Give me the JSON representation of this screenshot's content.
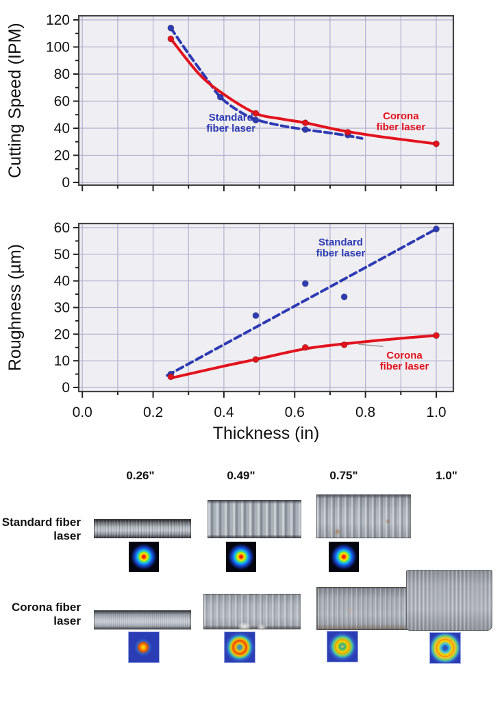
{
  "colors": {
    "standard_series": "#2e3bb3",
    "corona_series": "#e2131d",
    "plot_background": "#efeef2",
    "grid_line": "#b3b0d0",
    "axis_frame": "#444444",
    "text": "#111111"
  },
  "chart_data": [
    {
      "id": "cutting-speed",
      "type": "line",
      "title": "",
      "xlabel": "",
      "ylabel": "Cutting Speed  (IPM)",
      "xlim": [
        0,
        1.0
      ],
      "ylim": [
        0,
        120
      ],
      "xticks": [
        0,
        0.2,
        0.4,
        0.6,
        0.8,
        1.0
      ],
      "xtick_labels": [],
      "x_minor_step": 0.1,
      "yticks": [
        0,
        20,
        40,
        60,
        80,
        100,
        120
      ],
      "ytick_labels": [
        "0",
        "20",
        "40",
        "60",
        "80",
        "100",
        "120"
      ],
      "y_minor_step": 10,
      "grid": true,
      "legend_position": "inline-labels",
      "series": [
        {
          "name": "Standard fiber laser",
          "color": "#2e3bb3",
          "line_style": "dashed",
          "points": [
            [
              0.25,
              114
            ],
            [
              0.39,
              63
            ],
            [
              0.49,
              46
            ],
            [
              0.63,
              39
            ],
            [
              0.75,
              35
            ]
          ],
          "trend_line": [
            [
              0.25,
              114
            ],
            [
              0.3,
              95
            ],
            [
              0.35,
              77
            ],
            [
              0.39,
              63
            ],
            [
              0.44,
              53
            ],
            [
              0.49,
              46.5
            ],
            [
              0.56,
              42
            ],
            [
              0.63,
              39
            ],
            [
              0.7,
              36.5
            ],
            [
              0.75,
              34.5
            ],
            [
              0.79,
              32.5
            ]
          ],
          "label_lines": [
            "Standard",
            "fiber laser"
          ],
          "label_pos": [
            0.42,
            44
          ]
        },
        {
          "name": "Corona fiber laser",
          "color": "#e2131d",
          "line_style": "solid",
          "points": [
            [
              0.25,
              106
            ],
            [
              0.49,
              51
            ],
            [
              0.63,
              44
            ],
            [
              0.75,
              37
            ],
            [
              1.0,
              28.5
            ]
          ],
          "trend_line": [
            [
              0.25,
              106
            ],
            [
              0.33,
              80
            ],
            [
              0.4,
              65
            ],
            [
              0.49,
              51
            ],
            [
              0.56,
              47
            ],
            [
              0.63,
              44
            ],
            [
              0.7,
              40
            ],
            [
              0.75,
              37.5
            ],
            [
              0.85,
              33.5
            ],
            [
              1.0,
              28.5
            ]
          ],
          "label_lines": [
            "Corona",
            "fiber laser"
          ],
          "label_pos": [
            0.9,
            45
          ]
        }
      ]
    },
    {
      "id": "roughness",
      "type": "line",
      "title": "",
      "xlabel": "Thickness (in)",
      "ylabel": "Roughness (µm)",
      "xlim": [
        0,
        1.0
      ],
      "ylim": [
        0,
        60
      ],
      "xticks": [
        0,
        0.2,
        0.4,
        0.6,
        0.8,
        1.0
      ],
      "xtick_labels": [
        "0.0",
        "0.2",
        "0.4",
        "0.6",
        "0.8",
        "1.0"
      ],
      "x_minor_step": 0.1,
      "yticks": [
        0,
        10,
        20,
        30,
        40,
        50,
        60
      ],
      "ytick_labels": [
        "0",
        "10",
        "20",
        "30",
        "40",
        "50",
        "60"
      ],
      "y_minor_step": 5,
      "grid": true,
      "legend_position": "inline-labels",
      "series": [
        {
          "name": "Standard fiber laser",
          "color": "#2e3bb3",
          "line_style": "dashed",
          "points": [
            [
              0.25,
              5
            ],
            [
              0.49,
              27
            ],
            [
              0.63,
              39
            ],
            [
              0.74,
              34
            ],
            [
              1.0,
              59.5
            ]
          ],
          "trend_line": [
            [
              0.24,
              4.5
            ],
            [
              1.0,
              59.5
            ]
          ],
          "label_lines": [
            "Standard",
            "fiber laser"
          ],
          "label_pos": [
            0.73,
            52.5
          ]
        },
        {
          "name": "Corona fiber laser",
          "color": "#e2131d",
          "line_style": "solid",
          "points": [
            [
              0.25,
              4
            ],
            [
              0.49,
              10.5
            ],
            [
              0.63,
              15
            ],
            [
              0.74,
              16
            ],
            [
              1.0,
              19.5
            ]
          ],
          "trend_line": [
            [
              0.25,
              3.5
            ],
            [
              0.4,
              8
            ],
            [
              0.49,
              10.5
            ],
            [
              0.63,
              14.5
            ],
            [
              0.75,
              16.5
            ],
            [
              0.88,
              18.2
            ],
            [
              1.0,
              19.5
            ]
          ],
          "label_lines": [
            "Corona",
            "fiber laser"
          ],
          "label_pos": [
            0.91,
            10
          ],
          "leader_line": {
            "from": [
              0.78,
              16.2
            ],
            "to": [
              0.85,
              15.4
            ],
            "color": "#9a9a9a"
          }
        }
      ]
    }
  ],
  "figure": {
    "column_headers": [
      "0.26\"",
      "0.49\"",
      "0.75\"",
      "1.0\""
    ],
    "rows": [
      {
        "label": "Standard fiber laser",
        "beam_profiles": [
          "gaussian-spot",
          "gaussian-spot",
          "gaussian-spot"
        ]
      },
      {
        "label": "Corona fiber laser",
        "beam_profiles": [
          "small-spot",
          "ring",
          "ring",
          "large-ring"
        ]
      }
    ]
  }
}
